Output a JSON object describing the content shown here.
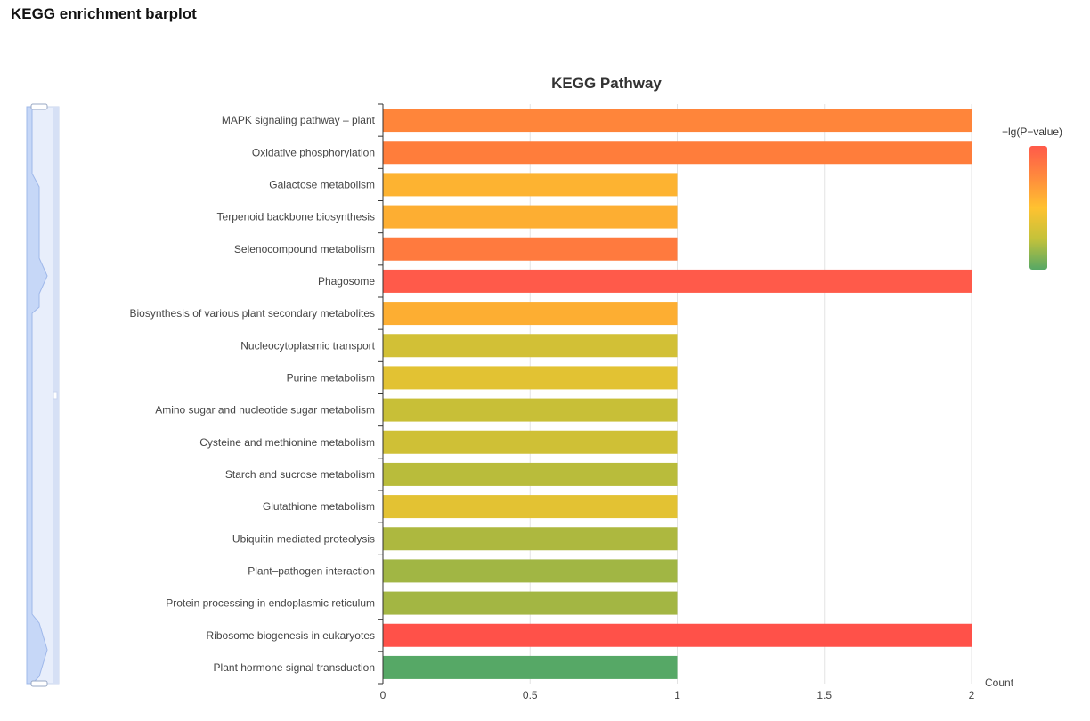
{
  "page": {
    "heading": "KEGG enrichment barplot"
  },
  "chart_data": {
    "type": "bar",
    "orientation": "horizontal",
    "title": "KEGG Pathway",
    "xlabel": "Count",
    "ylabel": "",
    "xlim": [
      0,
      2
    ],
    "x_ticks": [
      "0",
      "0.5",
      "1",
      "1.5",
      "2"
    ],
    "x_tick_values": [
      0,
      0.5,
      1,
      1.5,
      2
    ],
    "grid": "vertical",
    "color_legend": {
      "title": "−lg(P−value)",
      "placement": "right",
      "gradient": [
        "#ff5a4a",
        "#ff8a3d",
        "#ffc230",
        "#c4c23a",
        "#56a865"
      ]
    },
    "categories": [
      "MAPK signaling pathway – plant",
      "Oxidative phosphorylation",
      "Galactose metabolism",
      "Terpenoid backbone biosynthesis",
      "Selenocompound metabolism",
      "Phagosome",
      "Biosynthesis of various plant secondary metabolites",
      "Nucleocytoplasmic transport",
      "Purine metabolism",
      "Amino sugar and nucleotide sugar metabolism",
      "Cysteine and methionine metabolism",
      "Starch and sucrose metabolism",
      "Glutathione metabolism",
      "Ubiquitin mediated proteolysis",
      "Plant–pathogen interaction",
      "Protein processing in endoplasmic reticulum",
      "Ribosome biogenesis in eukaryotes",
      "Plant hormone signal transduction"
    ],
    "values": [
      2,
      2,
      1,
      1,
      1,
      2,
      1,
      1,
      1,
      1,
      1,
      1,
      1,
      1,
      1,
      1,
      2,
      1
    ],
    "colors": [
      "#ff853a",
      "#ff7d3b",
      "#fdb331",
      "#fdae32",
      "#ff7a3e",
      "#ff5a4a",
      "#fdae32",
      "#d2c036",
      "#e2c233",
      "#c8bf37",
      "#cfc036",
      "#b9bc3b",
      "#e3c233",
      "#adb83f",
      "#a1b644",
      "#a3b643",
      "#ff5149",
      "#56a866"
    ]
  },
  "zoom_slider": {
    "orientation": "vertical",
    "range_start": 0,
    "range_end": 1
  }
}
